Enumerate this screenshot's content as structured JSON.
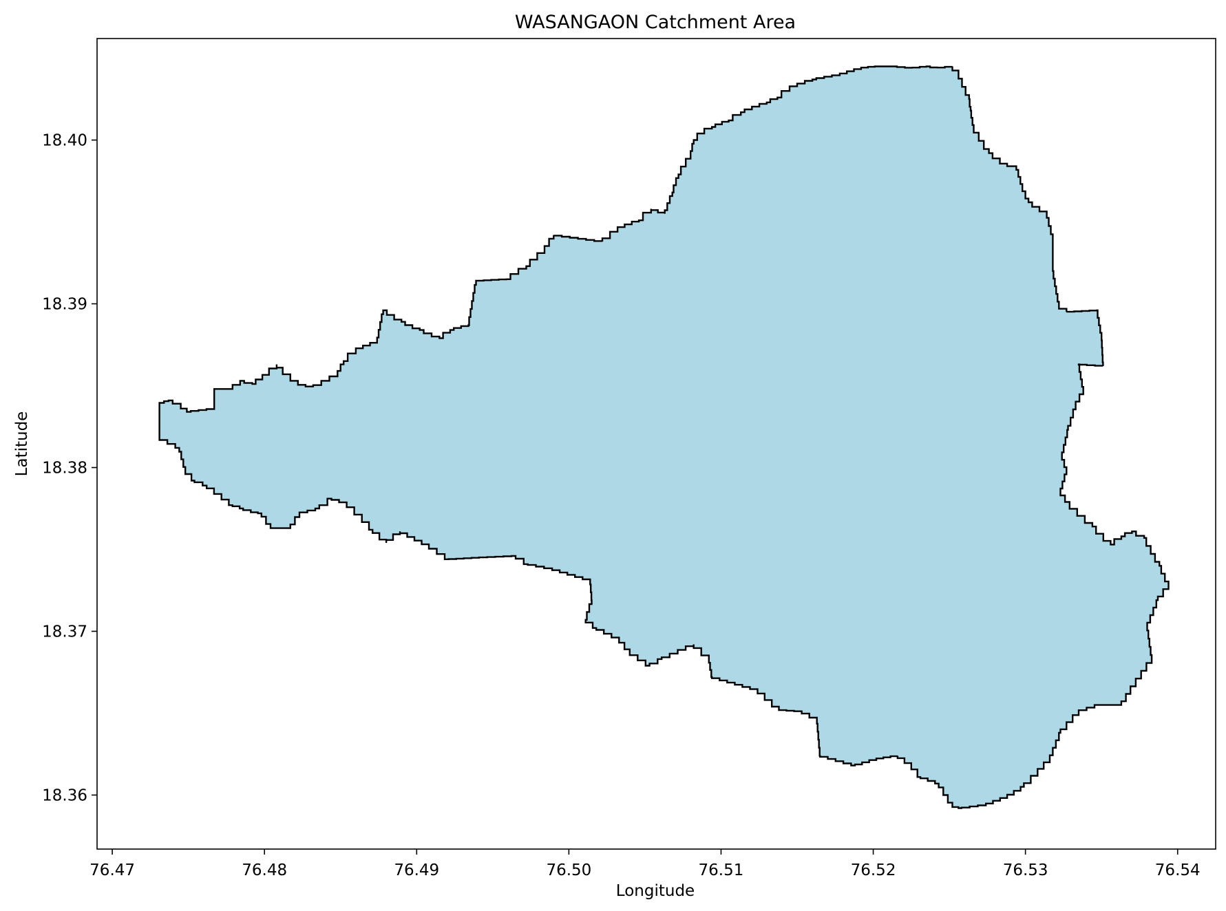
{
  "chart_data": {
    "type": "map",
    "title": "WASANGAON Catchment Area",
    "xlabel": "Longitude",
    "ylabel": "Latitude",
    "xlim": [
      76.469,
      76.5425
    ],
    "ylim": [
      18.3567,
      18.4062
    ],
    "xticks": [
      76.47,
      76.48,
      76.49,
      76.5,
      76.51,
      76.52,
      76.53,
      76.54
    ],
    "xtick_labels": [
      "76.47",
      "76.48",
      "76.49",
      "76.50",
      "76.51",
      "76.52",
      "76.53",
      "76.54"
    ],
    "yticks": [
      18.36,
      18.37,
      18.38,
      18.39,
      18.4
    ],
    "ytick_labels": [
      "18.36",
      "18.37",
      "18.38",
      "18.39",
      "18.40"
    ],
    "grid": false,
    "fill_color": "#add8e6",
    "edge_color": "#000000",
    "boundary": [
      [
        76.4731,
        18.3839
      ],
      [
        76.4731,
        18.3818
      ],
      [
        76.4744,
        18.3812
      ],
      [
        76.4748,
        18.3798
      ],
      [
        76.4754,
        18.3792
      ],
      [
        76.4762,
        18.3789
      ],
      [
        76.4779,
        18.3777
      ],
      [
        76.4786,
        18.3775
      ],
      [
        76.4791,
        18.3773
      ],
      [
        76.4798,
        18.3772
      ],
      [
        76.4801,
        18.3768
      ],
      [
        76.4804,
        18.3763
      ],
      [
        76.4817,
        18.3763
      ],
      [
        76.4823,
        18.3772
      ],
      [
        76.4836,
        18.3775
      ],
      [
        76.4844,
        18.3781
      ],
      [
        76.4854,
        18.3778
      ],
      [
        76.4864,
        18.3769
      ],
      [
        76.4871,
        18.3762
      ],
      [
        76.488,
        18.3754
      ],
      [
        76.4889,
        18.3761
      ],
      [
        76.4908,
        18.3752
      ],
      [
        76.4921,
        18.3744
      ],
      [
        76.4941,
        18.3745
      ],
      [
        76.4965,
        18.3746
      ],
      [
        76.4973,
        18.3741
      ],
      [
        76.4989,
        18.3738
      ],
      [
        76.5014,
        18.3731
      ],
      [
        76.5015,
        18.3719
      ],
      [
        76.5011,
        18.3707
      ],
      [
        76.5018,
        18.3702
      ],
      [
        76.5033,
        18.3695
      ],
      [
        76.504,
        18.3687
      ],
      [
        76.5053,
        18.3679
      ],
      [
        76.5061,
        18.3683
      ],
      [
        76.5082,
        18.3692
      ],
      [
        76.5092,
        18.3683
      ],
      [
        76.5094,
        18.3672
      ],
      [
        76.5124,
        18.3664
      ],
      [
        76.5138,
        18.3652
      ],
      [
        76.5153,
        18.3651
      ],
      [
        76.5163,
        18.3646
      ],
      [
        76.5165,
        18.3624
      ],
      [
        76.5188,
        18.3618
      ],
      [
        76.5202,
        18.3622
      ],
      [
        76.5216,
        18.3624
      ],
      [
        76.5225,
        18.3618
      ],
      [
        76.5231,
        18.3611
      ],
      [
        76.5243,
        18.3607
      ],
      [
        76.5252,
        18.3593
      ],
      [
        76.5258,
        18.3592
      ],
      [
        76.5274,
        18.3594
      ],
      [
        76.5288,
        18.3599
      ],
      [
        76.5299,
        18.3605
      ],
      [
        76.5308,
        18.3614
      ],
      [
        76.5316,
        18.3622
      ],
      [
        76.5323,
        18.3638
      ],
      [
        76.5335,
        18.3651
      ],
      [
        76.5348,
        18.3655
      ],
      [
        76.5363,
        18.3655
      ],
      [
        76.5369,
        18.3664
      ],
      [
        76.5383,
        18.3683
      ],
      [
        76.538,
        18.3703
      ],
      [
        76.5387,
        18.3719
      ],
      [
        76.5394,
        18.3728
      ],
      [
        76.5388,
        18.374
      ],
      [
        76.5378,
        18.3757
      ],
      [
        76.537,
        18.3761
      ],
      [
        76.5363,
        18.3758
      ],
      [
        76.5356,
        18.3753
      ],
      [
        76.5344,
        18.3764
      ],
      [
        76.5329,
        18.3777
      ],
      [
        76.5323,
        18.3785
      ],
      [
        76.5327,
        18.3798
      ],
      [
        76.5324,
        18.3807
      ],
      [
        76.5328,
        18.3823
      ],
      [
        76.5333,
        18.3838
      ],
      [
        76.5338,
        18.3847
      ],
      [
        76.5335,
        18.3863
      ],
      [
        76.5351,
        18.3862
      ],
      [
        76.535,
        18.388
      ],
      [
        76.5347,
        18.3896
      ],
      [
        76.5327,
        18.3895
      ],
      [
        76.5322,
        18.3899
      ],
      [
        76.5318,
        18.392
      ],
      [
        76.5318,
        18.394
      ],
      [
        76.5314,
        18.3955
      ],
      [
        76.5302,
        18.3962
      ],
      [
        76.5298,
        18.3971
      ],
      [
        76.5294,
        18.3984
      ],
      [
        76.5288,
        18.3984
      ],
      [
        76.5276,
        18.3992
      ],
      [
        76.5266,
        18.4007
      ],
      [
        76.5264,
        18.4018
      ],
      [
        76.5263,
        18.4025
      ],
      [
        76.5256,
        18.404
      ],
      [
        76.5252,
        18.4045
      ],
      [
        76.5242,
        18.4044
      ],
      [
        76.5235,
        18.4045
      ],
      [
        76.5226,
        18.4044
      ],
      [
        76.5213,
        18.4045
      ],
      [
        76.5201,
        18.4045
      ],
      [
        76.5192,
        18.4044
      ],
      [
        76.5178,
        18.404
      ],
      [
        76.516,
        18.4037
      ],
      [
        76.5145,
        18.4032
      ],
      [
        76.5137,
        18.4026
      ],
      [
        76.513,
        18.4023
      ],
      [
        76.5113,
        18.4017
      ],
      [
        76.5105,
        18.4012
      ],
      [
        76.5094,
        18.4008
      ],
      [
        76.5089,
        18.4006
      ],
      [
        76.5082,
        18.4
      ],
      [
        76.508,
        18.3991
      ],
      [
        76.5072,
        18.3979
      ],
      [
        76.5068,
        18.3968
      ],
      [
        76.5063,
        18.3955
      ],
      [
        76.5054,
        18.3958
      ],
      [
        76.5046,
        18.3951
      ],
      [
        76.5032,
        18.3946
      ],
      [
        76.5022,
        18.3938
      ],
      [
        76.499,
        18.3942
      ],
      [
        76.4984,
        18.3933
      ],
      [
        76.4972,
        18.3923
      ],
      [
        76.4959,
        18.3915
      ],
      [
        76.4939,
        18.3914
      ],
      [
        76.4934,
        18.3887
      ],
      [
        76.4922,
        18.3884
      ],
      [
        76.4915,
        18.3879
      ],
      [
        76.4902,
        18.3884
      ],
      [
        76.489,
        18.3889
      ],
      [
        76.4878,
        18.3896
      ],
      [
        76.4874,
        18.3877
      ],
      [
        76.486,
        18.3872
      ],
      [
        76.4852,
        18.3865
      ],
      [
        76.4848,
        18.3857
      ],
      [
        76.4832,
        18.3849
      ],
      [
        76.4822,
        18.3851
      ],
      [
        76.4812,
        18.3859
      ],
      [
        76.4808,
        18.3863
      ],
      [
        76.4803,
        18.3858
      ],
      [
        76.4792,
        18.3851
      ],
      [
        76.4784,
        18.3853
      ],
      [
        76.4779,
        18.3848
      ],
      [
        76.4767,
        18.3848
      ],
      [
        76.4767,
        18.3836
      ],
      [
        76.4749,
        18.3834
      ],
      [
        76.4745,
        18.3838
      ],
      [
        76.4737,
        18.3841
      ],
      [
        76.4734,
        18.384
      ]
    ]
  }
}
